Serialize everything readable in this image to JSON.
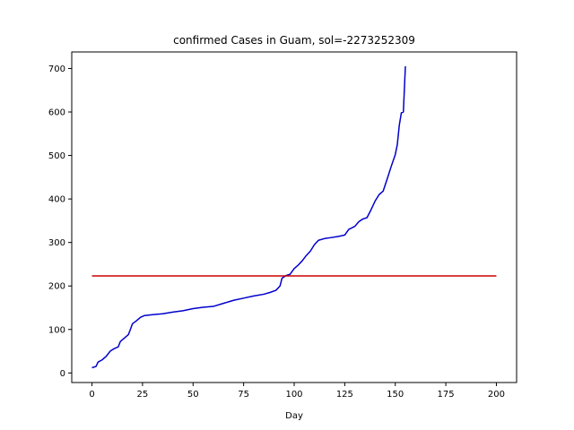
{
  "chart_data": {
    "type": "line",
    "title": "confirmed Cases in Guam, sol=-2273252309",
    "xlabel": "Day",
    "ylabel": "",
    "xlim": [
      -10,
      210
    ],
    "ylim": [
      -22,
      738
    ],
    "x_ticks": [
      0,
      25,
      50,
      75,
      100,
      125,
      150,
      175,
      200
    ],
    "y_ticks": [
      0,
      100,
      200,
      300,
      400,
      500,
      600,
      700
    ],
    "grid": false,
    "series": [
      {
        "color": "#0000cc",
        "points": [
          [
            0,
            12
          ],
          [
            2,
            15
          ],
          [
            3,
            25
          ],
          [
            5,
            30
          ],
          [
            7,
            38
          ],
          [
            9,
            50
          ],
          [
            11,
            56
          ],
          [
            13,
            60
          ],
          [
            14,
            72
          ],
          [
            16,
            80
          ],
          [
            18,
            88
          ],
          [
            19,
            100
          ],
          [
            20,
            113
          ],
          [
            22,
            120
          ],
          [
            24,
            128
          ],
          [
            26,
            132
          ],
          [
            30,
            134
          ],
          [
            35,
            136
          ],
          [
            40,
            140
          ],
          [
            45,
            143
          ],
          [
            50,
            148
          ],
          [
            55,
            151
          ],
          [
            60,
            153
          ],
          [
            65,
            160
          ],
          [
            70,
            167
          ],
          [
            75,
            172
          ],
          [
            80,
            177
          ],
          [
            85,
            181
          ],
          [
            88,
            185
          ],
          [
            91,
            190
          ],
          [
            93,
            200
          ],
          [
            94,
            218
          ],
          [
            96,
            224
          ],
          [
            98,
            227
          ],
          [
            100,
            240
          ],
          [
            102,
            248
          ],
          [
            104,
            258
          ],
          [
            106,
            270
          ],
          [
            108,
            280
          ],
          [
            110,
            295
          ],
          [
            112,
            305
          ],
          [
            115,
            309
          ],
          [
            118,
            311
          ],
          [
            122,
            314
          ],
          [
            125,
            317
          ],
          [
            127,
            330
          ],
          [
            130,
            337
          ],
          [
            132,
            348
          ],
          [
            134,
            354
          ],
          [
            136,
            357
          ],
          [
            138,
            375
          ],
          [
            140,
            395
          ],
          [
            142,
            410
          ],
          [
            144,
            418
          ],
          [
            146,
            446
          ],
          [
            148,
            475
          ],
          [
            150,
            502
          ],
          [
            151,
            525
          ],
          [
            152,
            570
          ],
          [
            153,
            598
          ],
          [
            154,
            600
          ],
          [
            155,
            705
          ]
        ]
      },
      {
        "color": "#cc0000",
        "points": [
          [
            0,
            223
          ],
          [
            200,
            223
          ]
        ]
      }
    ]
  }
}
